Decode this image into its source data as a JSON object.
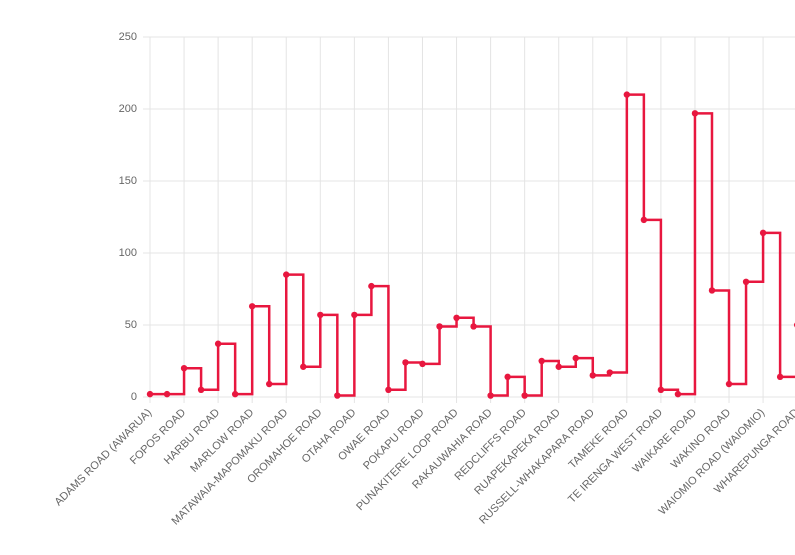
{
  "chart_data": {
    "type": "line",
    "stepped": true,
    "color": "#e8173f",
    "grid": true,
    "categories": [
      "ADAMS ROAD (AWARUA)",
      null,
      "FOPOS ROAD",
      null,
      "HARBU ROAD",
      null,
      "MARLOW ROAD",
      null,
      "MATAWAIA-MAPOMAKU ROAD",
      null,
      "OROMAHOE ROAD",
      null,
      "OTAHA ROAD",
      null,
      "OWAE ROAD",
      null,
      "POKAPU ROAD",
      null,
      "PUNAKITERE LOOP ROAD",
      null,
      "RAKAUWAHIA ROAD",
      null,
      "REDCLIFFS ROAD",
      null,
      "RUAPEKAPEKA ROAD",
      null,
      "RUSSELL-WHAKAPARA ROAD",
      null,
      "TAMEKE ROAD",
      null,
      "TE IRENGA WEST ROAD",
      null,
      "WAIKARE ROAD",
      null,
      "WAKINO ROAD",
      null,
      "WAIOMIO ROAD (WAIOMIO)",
      null,
      "WHAREPUNGA ROAD"
    ],
    "values": [
      2,
      2,
      20,
      5,
      37,
      2,
      63,
      9,
      85,
      21,
      57,
      1,
      57,
      77,
      5,
      24,
      23,
      49,
      55,
      49,
      1,
      14,
      1,
      25,
      21,
      27,
      15,
      17,
      210,
      123,
      5,
      2,
      197,
      74,
      9,
      80,
      114,
      14,
      50
    ],
    "ylim": [
      0,
      250
    ],
    "yticks": [
      0,
      50,
      100,
      150,
      200,
      250
    ]
  }
}
